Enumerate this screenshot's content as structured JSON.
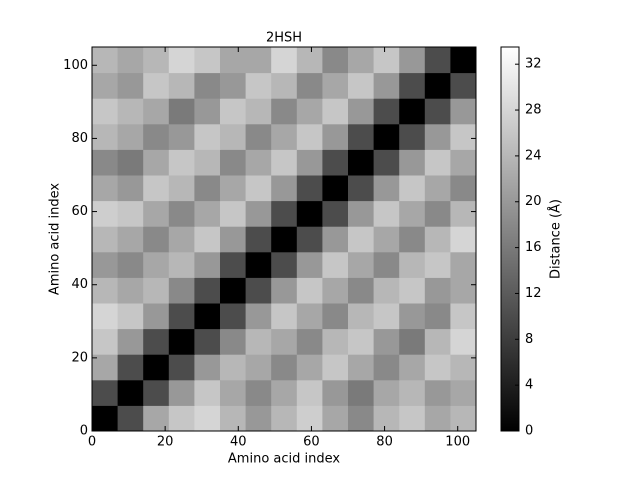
{
  "chart_data": {
    "type": "heatmap",
    "title": "2HSH",
    "xlabel": "Amino acid index",
    "ylabel": "Amino acid index",
    "colorbar_label": "Distance (Å)",
    "xlim": [
      0,
      105
    ],
    "ylim": [
      0,
      105
    ],
    "xticks": [
      0,
      20,
      40,
      60,
      80,
      100
    ],
    "yticks": [
      0,
      20,
      40,
      60,
      80,
      100
    ],
    "x_bins": [
      0,
      7,
      14,
      21,
      28,
      35,
      42,
      49,
      56,
      63,
      70,
      77,
      84,
      91,
      98,
      105
    ],
    "y_bins": [
      0,
      7,
      14,
      21,
      28,
      35,
      42,
      49,
      56,
      63,
      70,
      77,
      84,
      91,
      98,
      105
    ],
    "clim": [
      0,
      33.5
    ],
    "cticks": [
      0,
      4,
      8,
      12,
      16,
      20,
      24,
      28,
      32
    ],
    "colormap": [
      "#000000",
      "#ffffff"
    ],
    "values": [
      [
        0,
        10,
        22,
        26,
        28,
        24,
        20,
        24,
        27,
        22,
        18,
        24,
        26,
        22,
        24
      ],
      [
        10,
        0,
        10,
        20,
        26,
        22,
        18,
        22,
        26,
        20,
        16,
        22,
        24,
        20,
        22
      ],
      [
        22,
        10,
        0,
        10,
        20,
        24,
        22,
        18,
        22,
        26,
        22,
        18,
        22,
        26,
        24
      ],
      [
        26,
        20,
        10,
        0,
        10,
        18,
        24,
        22,
        18,
        24,
        26,
        20,
        16,
        24,
        28
      ],
      [
        28,
        26,
        20,
        10,
        0,
        10,
        20,
        26,
        22,
        18,
        24,
        26,
        20,
        18,
        26
      ],
      [
        24,
        22,
        24,
        18,
        10,
        0,
        10,
        20,
        26,
        22,
        18,
        24,
        26,
        20,
        22
      ],
      [
        20,
        18,
        22,
        24,
        20,
        10,
        0,
        10,
        20,
        26,
        22,
        18,
        24,
        26,
        22
      ],
      [
        24,
        22,
        18,
        22,
        26,
        20,
        10,
        0,
        10,
        20,
        26,
        22,
        18,
        24,
        28
      ],
      [
        27,
        26,
        22,
        18,
        22,
        26,
        20,
        10,
        0,
        10,
        20,
        26,
        22,
        18,
        24
      ],
      [
        22,
        20,
        26,
        24,
        18,
        22,
        26,
        20,
        10,
        0,
        10,
        20,
        26,
        22,
        18
      ],
      [
        18,
        16,
        22,
        26,
        24,
        18,
        22,
        26,
        20,
        10,
        0,
        10,
        20,
        26,
        22
      ],
      [
        24,
        22,
        18,
        20,
        26,
        24,
        18,
        22,
        26,
        20,
        10,
        0,
        10,
        20,
        26
      ],
      [
        26,
        24,
        22,
        16,
        20,
        26,
        24,
        18,
        22,
        26,
        20,
        10,
        0,
        10,
        20
      ],
      [
        22,
        20,
        26,
        24,
        18,
        20,
        26,
        24,
        18,
        22,
        26,
        20,
        10,
        0,
        10
      ],
      [
        24,
        22,
        24,
        28,
        26,
        22,
        22,
        28,
        24,
        18,
        22,
        26,
        20,
        10,
        0
      ]
    ]
  }
}
